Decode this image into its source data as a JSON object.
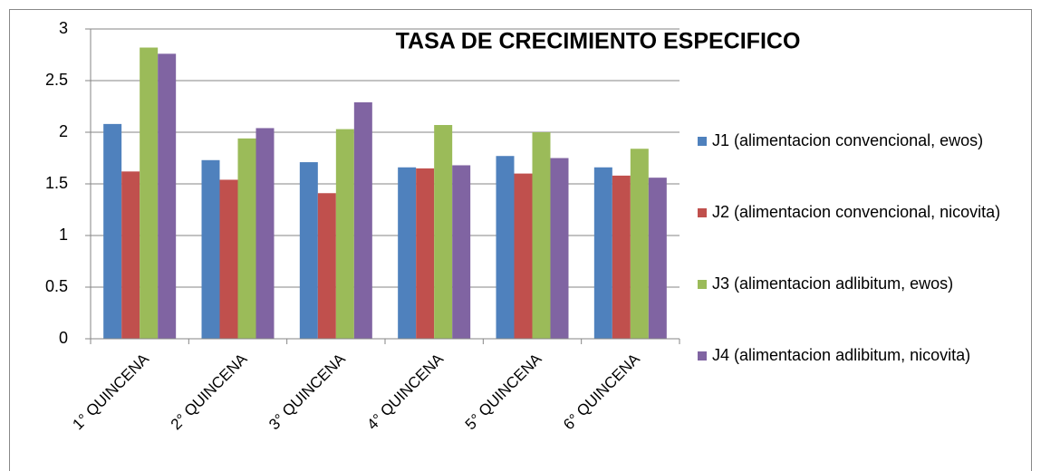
{
  "chart_data": {
    "type": "bar",
    "title": "TASA DE CRECIMIENTO ESPECIFICO",
    "categories": [
      "1° QUINCENA",
      "2° QUINCENA",
      "3° QUINCENA",
      "4° QUINCENA",
      "5° QUINCENA",
      "6° QUINCENA"
    ],
    "series": [
      {
        "name": "J1  (alimentacion  convencional, ewos)",
        "color": "#4f81bd",
        "values": [
          2.08,
          1.73,
          1.71,
          1.66,
          1.77,
          1.66
        ]
      },
      {
        "name": "J2  (alimentacion  convencional, nicovita)",
        "color": "#c0504d",
        "values": [
          1.62,
          1.54,
          1.41,
          1.65,
          1.6,
          1.58
        ]
      },
      {
        "name": "J3  (alimentacion  adlibitum, ewos)",
        "color": "#9bbb59",
        "values": [
          2.82,
          1.94,
          2.03,
          2.07,
          2.0,
          1.84
        ]
      },
      {
        "name": "J4  (alimentacion  adlibitum, nicovita)",
        "color": "#8064a2",
        "values": [
          2.76,
          2.04,
          2.29,
          1.68,
          1.75,
          1.56
        ]
      }
    ],
    "ylim": [
      0,
      3
    ],
    "yticks": [
      0,
      0.5,
      1,
      1.5,
      2,
      2.5,
      3
    ],
    "grid": true,
    "legend": "right"
  }
}
